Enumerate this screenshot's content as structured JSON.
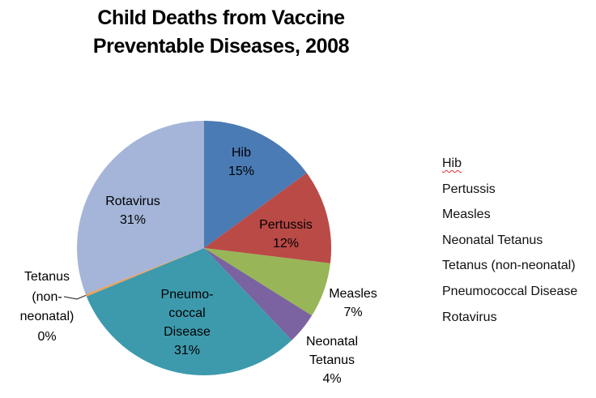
{
  "header": {
    "title_lines": [
      "Child Deaths from Vaccine",
      "Preventable Diseases, 2008"
    ]
  },
  "chart_data": {
    "type": "pie",
    "title": "Child Deaths from Vaccine Preventable Diseases, 2008",
    "direction": "clockwise",
    "start_angle_deg": 0,
    "legend_position": "right",
    "grid": false,
    "slices": [
      {
        "label": "Hib",
        "value_pct": 15,
        "color": "#4A7BB5",
        "label_placement": "inside",
        "display_lines": [
          "Hib",
          "15%"
        ]
      },
      {
        "label": "Pertussis",
        "value_pct": 12,
        "color": "#BA4A46",
        "label_placement": "inside",
        "display_lines": [
          "Pertussis",
          "12%"
        ]
      },
      {
        "label": "Measles",
        "value_pct": 7,
        "color": "#98B657",
        "label_placement": "outside",
        "display_lines": [
          "Measles",
          "7%"
        ]
      },
      {
        "label": "Neonatal Tetanus",
        "value_pct": 4,
        "color": "#7A63A0",
        "label_placement": "outside",
        "display_lines": [
          "Neonatal",
          "Tetanus",
          "4%"
        ]
      },
      {
        "label": "Pneumococcal Disease",
        "value_pct": 31,
        "color": "#3D9AAD",
        "label_placement": "inside",
        "display_lines": [
          "Pneumo-",
          "coccal",
          "Disease",
          "31%"
        ]
      },
      {
        "label": "Tetanus (non-neonatal)",
        "value_pct": 0,
        "color": "#E8A15C",
        "label_placement": "outside-with-leader-line",
        "display_lines": [
          "Tetanus",
          "(non-",
          "neonatal)",
          "0%"
        ]
      },
      {
        "label": "Rotavirus",
        "value_pct": 31,
        "color": "#A4B5D9",
        "label_placement": "inside",
        "display_lines": [
          "Rotavirus",
          "31%"
        ]
      }
    ]
  },
  "legend": {
    "items": [
      {
        "label": "Hib",
        "spellcheck_underline": true
      },
      {
        "label": "Pertussis",
        "spellcheck_underline": false
      },
      {
        "label": "Measles",
        "spellcheck_underline": false
      },
      {
        "label": "Neonatal Tetanus",
        "spellcheck_underline": false
      },
      {
        "label": "Tetanus (non-neonatal)",
        "spellcheck_underline": false
      },
      {
        "label": "Pneumococcal Disease",
        "spellcheck_underline": false
      },
      {
        "label": "Rotavirus",
        "spellcheck_underline": false
      }
    ],
    "spellcheck_color": "#e53030"
  },
  "style": {
    "background": "#ffffff",
    "leader_line_color": "#404040",
    "text_color": "#000000"
  }
}
